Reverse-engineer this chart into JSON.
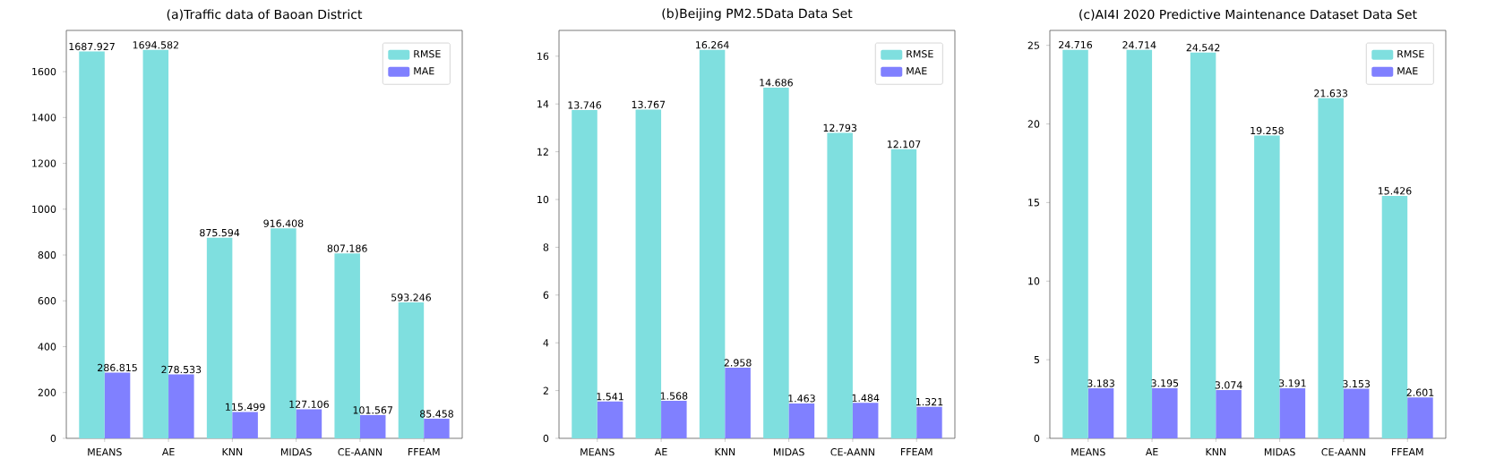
{
  "chart_data": [
    {
      "type": "bar",
      "title": "(a)Traffic data of Baoan District",
      "categories": [
        "MEANS",
        "AE",
        "KNN",
        "MIDAS",
        "CE-AANN",
        "FFEAM"
      ],
      "series": [
        {
          "name": "RMSE",
          "color": "#7fdfdf",
          "values": [
            1687.927,
            1694.582,
            875.594,
            916.408,
            807.186,
            593.246
          ]
        },
        {
          "name": "MAE",
          "color": "#8080ff",
          "values": [
            286.815,
            278.533,
            115.499,
            127.106,
            101.567,
            85.458
          ]
        }
      ],
      "ylim": [
        0,
        1780
      ],
      "yticks": [
        0,
        200,
        400,
        600,
        800,
        1000,
        1200,
        1400,
        1600
      ],
      "data_labels": true,
      "legend": "top right"
    },
    {
      "type": "bar",
      "title": "(b)Beijing PM2.5Data Data Set",
      "categories": [
        "MEANS",
        "AE",
        "KNN",
        "MIDAS",
        "CE-AANN",
        "FFEAM"
      ],
      "series": [
        {
          "name": "RMSE",
          "color": "#7fdfdf",
          "values": [
            13.746,
            13.767,
            16.264,
            14.686,
            12.793,
            12.107
          ]
        },
        {
          "name": "MAE",
          "color": "#8080ff",
          "values": [
            1.541,
            1.568,
            2.958,
            1.463,
            1.484,
            1.321
          ]
        }
      ],
      "ylim": [
        0,
        17.08
      ],
      "yticks": [
        0,
        2,
        4,
        6,
        8,
        10,
        12,
        14,
        16
      ],
      "data_labels": true,
      "legend": "top right"
    },
    {
      "type": "bar",
      "title": "(c)AI4I 2020 Predictive Maintenance Dataset Data Set",
      "categories": [
        "MEANS",
        "AE",
        "KNN",
        "MIDAS",
        "CE-AANN",
        "FFEAM"
      ],
      "series": [
        {
          "name": "RMSE",
          "color": "#7fdfdf",
          "values": [
            24.716,
            24.714,
            24.542,
            19.258,
            21.633,
            15.426
          ]
        },
        {
          "name": "MAE",
          "color": "#8080ff",
          "values": [
            3.183,
            3.195,
            3.074,
            3.191,
            3.153,
            2.601
          ]
        }
      ],
      "ylim": [
        0,
        25.95
      ],
      "yticks": [
        0,
        5,
        10,
        15,
        20,
        25
      ],
      "data_labels": true,
      "legend": "top right"
    }
  ]
}
